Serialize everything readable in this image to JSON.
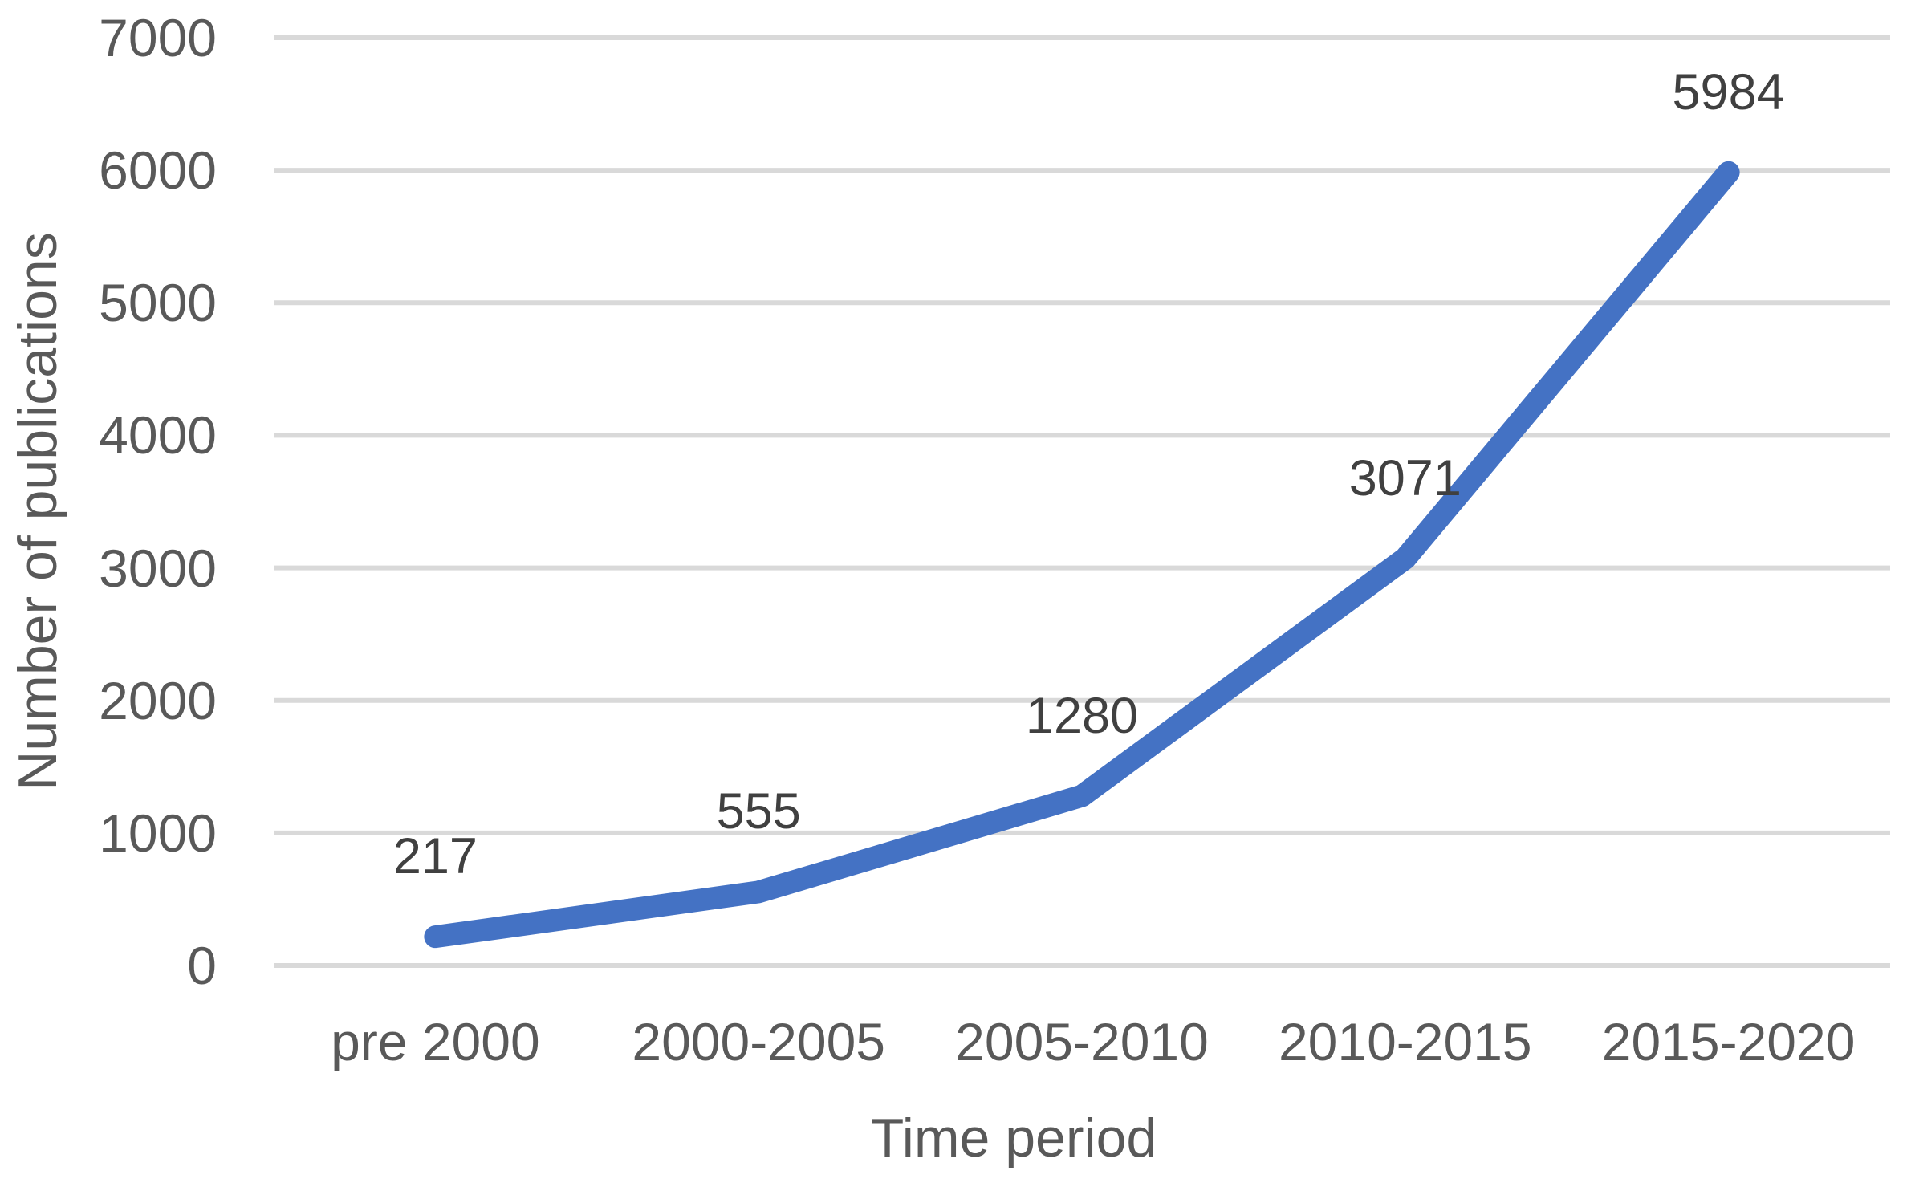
{
  "chart_data": {
    "type": "line",
    "categories": [
      "pre 2000",
      "2000-2005",
      "2005-2010",
      "2010-2015",
      "2015-2020"
    ],
    "values": [
      217,
      555,
      1280,
      3071,
      5984
    ],
    "data_labels": [
      "217",
      "555",
      "1280",
      "3071",
      "5984"
    ],
    "title": "",
    "xlabel": "Time period",
    "ylabel": "Number of publications",
    "ylim": [
      0,
      7000
    ],
    "yticks": [
      0,
      1000,
      2000,
      3000,
      4000,
      5000,
      6000,
      7000
    ],
    "grid": true,
    "legend": "none",
    "colors": {
      "line": "#4472C4",
      "gridline": "#D9D9D9",
      "axis_text": "#595959",
      "data_label_text": "#404040",
      "background": "#FFFFFF"
    }
  }
}
